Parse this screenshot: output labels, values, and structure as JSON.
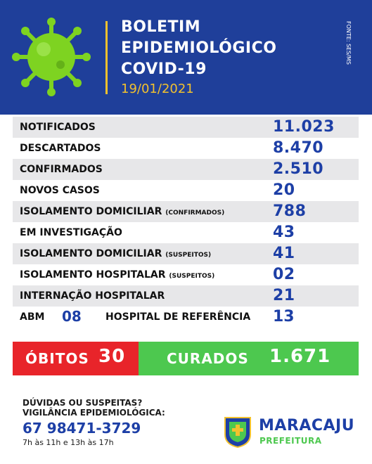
{
  "header": {
    "title_line1": "BOLETIM",
    "title_line2": "EPIDEMIOLÓGICO",
    "title_line3": "COVID-19",
    "date": "19/01/2021",
    "source": "FONTE: SES/MS",
    "icon": "virus-icon"
  },
  "rows": [
    {
      "label": "NOTIFICADOS",
      "sub": "",
      "value": "11.023"
    },
    {
      "label": "DESCARTADOS",
      "sub": "",
      "value": "8.470"
    },
    {
      "label": "CONFIRMADOS",
      "sub": "",
      "value": "2.510"
    },
    {
      "label": "NOVOS CASOS",
      "sub": "",
      "value": "20"
    },
    {
      "label": "ISOLAMENTO DOMICILIAR",
      "sub": "(CONFIRMADOS)",
      "value": "788"
    },
    {
      "label": "EM INVESTIGAÇÃO",
      "sub": "",
      "value": "43"
    },
    {
      "label": "ISOLAMENTO DOMICILIAR",
      "sub": "(SUSPEITOS)",
      "value": "41"
    },
    {
      "label": "ISOLAMENTO HOSPITALAR",
      "sub": "(SUSPEITOS)",
      "value": "02"
    },
    {
      "label": "INTERNAÇÃO HOSPITALAR",
      "sub": "",
      "value": "21"
    }
  ],
  "last_row": {
    "abm_label": "ABM",
    "abm_value": "08",
    "hospital_label": "HOSPITAL DE REFERÊNCIA",
    "hospital_value": "13"
  },
  "summary": {
    "obitos_label": "ÓBITOS",
    "obitos_value": "30",
    "curados_label": "CURADOS",
    "curados_value": "1.671"
  },
  "footer": {
    "question": "DÚVIDAS OU SUSPEITAS?",
    "service": "VIGILÂNCIA EPIDEMIOLÓGICA:",
    "phone": "67 98471-3729",
    "hours": "7h às 11h e 13h às 17h",
    "city": "MARACAJU",
    "org": "PREFEITURA"
  },
  "colors": {
    "header_bg": "#1f3f9a",
    "accent_yellow": "#f2c12e",
    "value_blue": "#1d3fa6",
    "obitos_red": "#e8242a",
    "curados_green": "#4dc84f",
    "row_shade": "#e7e7e9"
  }
}
